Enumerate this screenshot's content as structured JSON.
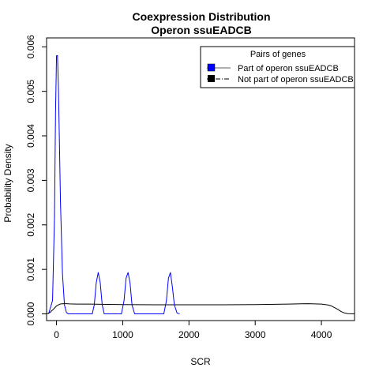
{
  "chart_data": {
    "type": "line",
    "title_lines": [
      "Coexpression Distribution",
      "Operon ssuEADCB"
    ],
    "xlabel": "SCR",
    "ylabel": "Probability Density",
    "xlim": [
      -150,
      4500
    ],
    "ylim": [
      -0.00015,
      0.0062
    ],
    "x_ticks": [
      0,
      1000,
      2000,
      3000,
      4000
    ],
    "x_tick_labels": [
      "0",
      "1000",
      "2000",
      "3000",
      "4000"
    ],
    "y_ticks": [
      0.0,
      0.001,
      0.002,
      0.003,
      0.004,
      0.005,
      0.006
    ],
    "y_tick_labels": [
      "0.000",
      "0.001",
      "0.002",
      "0.003",
      "0.004",
      "0.005",
      "0.006"
    ],
    "grid": false,
    "legend": {
      "title": "Pairs of genes",
      "placement": "top-right",
      "entries": [
        "Part of operon ssuEADCB",
        "Not part of operon ssuEADCB"
      ]
    },
    "colors": {
      "operon": "#0000ff",
      "non_operon": "#000000"
    },
    "series": [
      {
        "name": "Part of operon ssuEADCB",
        "color": "#0000ff",
        "x": [
          -120,
          -60,
          -30,
          -15,
          0,
          15,
          30,
          60,
          90,
          120,
          150,
          180,
          210,
          240,
          540,
          570,
          600,
          630,
          660,
          690,
          720,
          980,
          1020,
          1050,
          1080,
          1110,
          1140,
          1180,
          1620,
          1660,
          1690,
          1720,
          1750,
          1780,
          1820,
          1860
        ],
        "y": [
          0.0,
          0.0003,
          0.0022,
          0.0045,
          0.0058,
          0.0058,
          0.005,
          0.0025,
          0.0009,
          0.0002,
          3e-05,
          0.0,
          0.0,
          0.0,
          0.0,
          0.0002,
          0.0007,
          0.00093,
          0.0007,
          0.0002,
          0.0,
          0.0,
          0.0003,
          0.0008,
          0.00093,
          0.0007,
          0.0002,
          0.0,
          0.0,
          0.0003,
          0.0008,
          0.00093,
          0.0006,
          0.0002,
          2e-05,
          0.0
        ]
      },
      {
        "name": "Not part of operon ssuEADCB",
        "color": "#000000",
        "x": [
          -150,
          -100,
          -50,
          0,
          50,
          100,
          150,
          200,
          300,
          500,
          1000,
          1500,
          2000,
          2500,
          3000,
          3500,
          3800,
          4000,
          4100,
          4150,
          4200,
          4250,
          4300,
          4350,
          4400,
          4500
        ],
        "y": [
          0.0,
          3e-05,
          0.0001,
          0.00018,
          0.00022,
          0.00023,
          0.00023,
          0.000225,
          0.00022,
          0.00022,
          0.00021,
          0.000205,
          0.000205,
          0.000205,
          0.00021,
          0.00022,
          0.00023,
          0.00022,
          0.0002,
          0.00018,
          0.00014,
          0.0001,
          5e-05,
          2e-05,
          5e-06,
          0.0
        ]
      }
    ]
  }
}
